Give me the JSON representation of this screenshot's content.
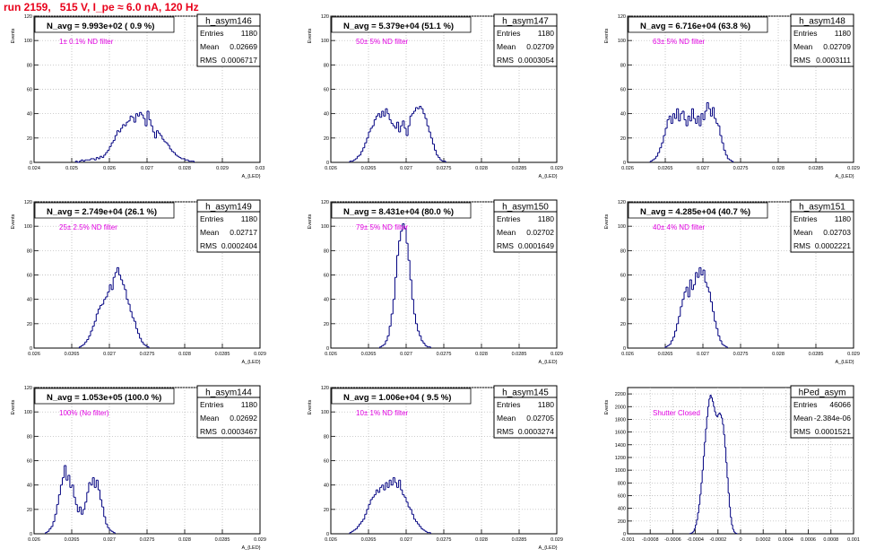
{
  "page": {
    "title": "run 2159,   515 V, I_pe ≈ 6.0 nA, 120 Hz",
    "colors": {
      "title": "#e8001a",
      "histogram": "#000080",
      "annotation": "#e000e0",
      "grid": "#b0b0b0"
    }
  },
  "chart_data": [
    {
      "type": "bar",
      "name": "h_asym146",
      "ylabel": "Events",
      "xlabel": "A_{LED}",
      "stats": {
        "entries_label": "Entries",
        "entries": "1180",
        "mean_label": "Mean",
        "mean": "0.02669",
        "rms_label": "RMS",
        "rms": "0.0006717"
      },
      "navg_text": "N_avg = 9.993e+02 ( 0.9 %)",
      "filter_text": "1± 0.1% ND filter",
      "xlim": [
        0.024,
        0.03
      ],
      "ylim": [
        0,
        120
      ],
      "grid": true,
      "xticks": [
        "0.024",
        "0.025",
        "0.026",
        "0.027",
        "0.028",
        "0.029",
        "0.03"
      ],
      "xtick_vals": [
        0.024,
        0.025,
        0.026,
        0.027,
        0.028,
        0.029,
        0.03
      ],
      "yticks": [
        "0",
        "20",
        "40",
        "60",
        "80",
        "100",
        "120"
      ],
      "ytick_vals": [
        0,
        20,
        40,
        60,
        80,
        100,
        120
      ],
      "binned": {
        "x0": 0.0251,
        "dx": 5e-05,
        "values": [
          1,
          0,
          1,
          2,
          1,
          2,
          2,
          2,
          3,
          3,
          2,
          4,
          3,
          5,
          4,
          6,
          8,
          10,
          13,
          16,
          18,
          22,
          26,
          25,
          28,
          31,
          30,
          33,
          34,
          38,
          37,
          33,
          40,
          38,
          41,
          39,
          36,
          30,
          42,
          35,
          30,
          25,
          20,
          26,
          24,
          22,
          19,
          17,
          16,
          14,
          11,
          9,
          8,
          6,
          5,
          4,
          3,
          3,
          2,
          2,
          1,
          1,
          1
        ]
      }
    },
    {
      "type": "bar",
      "name": "h_asym147",
      "ylabel": "Events",
      "xlabel": "A_{LED}",
      "stats": {
        "entries_label": "Entries",
        "entries": "1180",
        "mean_label": "Mean",
        "mean": "0.02709",
        "rms_label": "RMS",
        "rms": "0.0003054"
      },
      "navg_text": "N_avg = 5.379e+04 (51.1 %)",
      "filter_text": "50± 5% ND filter",
      "xlim": [
        0.026,
        0.029
      ],
      "ylim": [
        0,
        120
      ],
      "grid": true,
      "xticks": [
        "0.026",
        "0.0265",
        "0.027",
        "0.0275",
        "0.028",
        "0.0285",
        "0.029"
      ],
      "xtick_vals": [
        0.026,
        0.0265,
        0.027,
        0.0275,
        0.028,
        0.0285,
        0.029
      ],
      "yticks": [
        "0",
        "20",
        "40",
        "60",
        "80",
        "100",
        "120"
      ],
      "ytick_vals": [
        0,
        20,
        40,
        60,
        80,
        100,
        120
      ],
      "binned": {
        "x0": 0.02625,
        "dx": 2.5e-05,
        "values": [
          1,
          1,
          2,
          3,
          5,
          6,
          9,
          12,
          16,
          20,
          25,
          28,
          30,
          35,
          38,
          40,
          37,
          42,
          38,
          44,
          40,
          35,
          32,
          30,
          28,
          33,
          25,
          30,
          34,
          28,
          22,
          30,
          38,
          40,
          42,
          45,
          44,
          46,
          44,
          40,
          36,
          30,
          25,
          20,
          15,
          10,
          6,
          4,
          2,
          1,
          1
        ]
      }
    },
    {
      "type": "bar",
      "name": "h_asym148",
      "ylabel": "Events",
      "xlabel": "A_{LED}",
      "stats": {
        "entries_label": "Entries",
        "entries": "1180",
        "mean_label": "Mean",
        "mean": "0.02709",
        "rms_label": "RMS",
        "rms": "0.0003111"
      },
      "navg_text": "N_avg = 6.716e+04 (63.8 %)",
      "filter_text": "63± 5% ND filter",
      "xlim": [
        0.026,
        0.029
      ],
      "ylim": [
        0,
        120
      ],
      "grid": true,
      "xticks": [
        "0.026",
        "0.0265",
        "0.027",
        "0.0275",
        "0.028",
        "0.0285",
        "0.029"
      ],
      "xtick_vals": [
        0.026,
        0.0265,
        0.027,
        0.0275,
        0.028,
        0.0285,
        0.029
      ],
      "yticks": [
        "0",
        "20",
        "40",
        "60",
        "80",
        "100",
        "120"
      ],
      "ytick_vals": [
        0,
        20,
        40,
        60,
        80,
        100,
        120
      ],
      "binned": {
        "x0": 0.0263,
        "dx": 2.5e-05,
        "values": [
          1,
          2,
          3,
          5,
          8,
          12,
          16,
          22,
          28,
          35,
          38,
          32,
          40,
          36,
          44,
          34,
          40,
          42,
          35,
          30,
          38,
          34,
          44,
          36,
          32,
          38,
          30,
          40,
          35,
          42,
          49,
          44,
          38,
          45,
          36,
          32,
          30,
          22,
          16,
          10,
          6,
          3,
          2,
          1
        ]
      }
    },
    {
      "type": "bar",
      "name": "h_asym149",
      "ylabel": "Events",
      "xlabel": "A_{LED}",
      "stats": {
        "entries_label": "Entries",
        "entries": "1180",
        "mean_label": "Mean",
        "mean": "0.02717",
        "rms_label": "RMS",
        "rms": "0.0002404"
      },
      "navg_text": "N_avg = 2.749e+04 (26.1 %)",
      "filter_text": "25± 2.5% ND filter",
      "xlim": [
        0.026,
        0.029
      ],
      "ylim": [
        0,
        120
      ],
      "grid": true,
      "xticks": [
        "0.026",
        "0.0265",
        "0.027",
        "0.0275",
        "0.028",
        "0.0285",
        "0.029"
      ],
      "xtick_vals": [
        0.026,
        0.0265,
        0.027,
        0.0275,
        0.028,
        0.0285,
        0.029
      ],
      "yticks": [
        "0",
        "20",
        "40",
        "60",
        "80",
        "100",
        "120"
      ],
      "ytick_vals": [
        0,
        20,
        40,
        60,
        80,
        100,
        120
      ],
      "binned": {
        "x0": 0.0266,
        "dx": 2.5e-05,
        "values": [
          1,
          2,
          3,
          5,
          7,
          10,
          14,
          18,
          22,
          28,
          32,
          35,
          36,
          40,
          42,
          46,
          52,
          48,
          58,
          62,
          66,
          60,
          56,
          52,
          48,
          40,
          36,
          30,
          25,
          22,
          16,
          12,
          8,
          5,
          3,
          2,
          1
        ]
      }
    },
    {
      "type": "bar",
      "name": "h_asym150",
      "ylabel": "Events",
      "xlabel": "A_{LED}",
      "stats": {
        "entries_label": "Entries",
        "entries": "1180",
        "mean_label": "Mean",
        "mean": "0.02702",
        "rms_label": "RMS",
        "rms": "0.0001649"
      },
      "navg_text": "N_avg = 8.431e+04 (80.0 %)",
      "filter_text": "79± 5% ND filter",
      "xlim": [
        0.026,
        0.029
      ],
      "ylim": [
        0,
        120
      ],
      "grid": true,
      "xticks": [
        "0.026",
        "0.0265",
        "0.027",
        "0.0275",
        "0.028",
        "0.0285",
        "0.029"
      ],
      "xtick_vals": [
        0.026,
        0.0265,
        0.027,
        0.0275,
        0.028,
        0.0285,
        0.029
      ],
      "yticks": [
        "0",
        "20",
        "40",
        "60",
        "80",
        "100",
        "120"
      ],
      "ytick_vals": [
        0,
        20,
        40,
        60,
        80,
        100,
        120
      ],
      "binned": {
        "x0": 0.02665,
        "dx": 2.5e-05,
        "values": [
          1,
          2,
          3,
          6,
          10,
          18,
          28,
          40,
          58,
          76,
          88,
          96,
          102,
          98,
          86,
          72,
          56,
          40,
          28,
          20,
          14,
          10,
          6,
          4,
          2,
          1,
          1
        ]
      }
    },
    {
      "type": "bar",
      "name": "h_asym151",
      "ylabel": "Events",
      "xlabel": "A_{LED}",
      "stats": {
        "entries_label": "Entries",
        "entries": "1180",
        "mean_label": "Mean",
        "mean": "0.02703",
        "rms_label": "RMS",
        "rms": "0.0002221"
      },
      "navg_text": "N_avg = 4.285e+04 (40.7 %)",
      "filter_text": "40± 4% ND filter",
      "xlim": [
        0.026,
        0.029
      ],
      "ylim": [
        0,
        120
      ],
      "grid": true,
      "xticks": [
        "0.026",
        "0.0265",
        "0.027",
        "0.0275",
        "0.028",
        "0.0285",
        "0.029"
      ],
      "xtick_vals": [
        0.026,
        0.0265,
        0.027,
        0.0275,
        0.028,
        0.0285,
        0.029
      ],
      "yticks": [
        "0",
        "20",
        "40",
        "60",
        "80",
        "100",
        "120"
      ],
      "ytick_vals": [
        0,
        20,
        40,
        60,
        80,
        100,
        120
      ],
      "binned": {
        "x0": 0.0265,
        "dx": 2.5e-05,
        "values": [
          1,
          2,
          3,
          6,
          9,
          14,
          20,
          26,
          34,
          40,
          46,
          50,
          42,
          56,
          48,
          52,
          62,
          58,
          66,
          60,
          64,
          54,
          50,
          46,
          38,
          30,
          22,
          16,
          10,
          6,
          3,
          2,
          1
        ]
      }
    },
    {
      "type": "bar",
      "name": "h_asym144",
      "ylabel": "Events",
      "xlabel": "A_{LED}",
      "stats": {
        "entries_label": "Entries",
        "entries": "1180",
        "mean_label": "Mean",
        "mean": "0.02692",
        "rms_label": "RMS",
        "rms": "0.0003467"
      },
      "navg_text": "N_avg = 1.053e+05 (100.0 %)",
      "filter_text": "100% (No filter)",
      "xlim": [
        0.026,
        0.029
      ],
      "ylim": [
        0,
        120
      ],
      "grid": true,
      "xticks": [
        "0.026",
        "0.0265",
        "0.027",
        "0.0275",
        "0.028",
        "0.0285",
        "0.029"
      ],
      "xtick_vals": [
        0.026,
        0.0265,
        0.027,
        0.0275,
        0.028,
        0.0285,
        0.029
      ],
      "yticks": [
        "0",
        "20",
        "40",
        "60",
        "80",
        "100",
        "120"
      ],
      "ytick_vals": [
        0,
        20,
        40,
        60,
        80,
        100,
        120
      ],
      "binned": {
        "x0": 0.02615,
        "dx": 2.5e-05,
        "values": [
          1,
          2,
          4,
          6,
          10,
          16,
          24,
          32,
          40,
          46,
          56,
          44,
          48,
          38,
          40,
          30,
          24,
          18,
          22,
          16,
          20,
          26,
          34,
          42,
          40,
          46,
          38,
          44,
          36,
          28,
          22,
          14,
          8,
          5,
          3,
          2,
          1
        ]
      }
    },
    {
      "type": "bar",
      "name": "h_asym145",
      "ylabel": "Events",
      "xlabel": "A_{LED}",
      "stats": {
        "entries_label": "Entries",
        "entries": "1180",
        "mean_label": "Mean",
        "mean": "0.02705",
        "rms_label": "RMS",
        "rms": "0.0003274"
      },
      "navg_text": "N_avg = 1.006e+04 ( 9.5 %)",
      "filter_text": "10± 1% ND filter",
      "xlim": [
        0.026,
        0.029
      ],
      "ylim": [
        0,
        120
      ],
      "grid": true,
      "xticks": [
        "0.026",
        "0.0265",
        "0.027",
        "0.0275",
        "0.028",
        "0.0285",
        "0.029"
      ],
      "xtick_vals": [
        0.026,
        0.0265,
        0.027,
        0.0275,
        0.028,
        0.0285,
        0.029
      ],
      "yticks": [
        "0",
        "20",
        "40",
        "60",
        "80",
        "100",
        "120"
      ],
      "ytick_vals": [
        0,
        20,
        40,
        60,
        80,
        100,
        120
      ],
      "binned": {
        "x0": 0.02625,
        "dx": 2.5e-05,
        "values": [
          1,
          2,
          3,
          4,
          6,
          8,
          10,
          12,
          16,
          20,
          24,
          28,
          30,
          32,
          36,
          34,
          38,
          40,
          36,
          42,
          38,
          44,
          40,
          46,
          42,
          38,
          44,
          36,
          32,
          30,
          26,
          22,
          20,
          16,
          12,
          10,
          8,
          6,
          4,
          3,
          2,
          1,
          1
        ]
      }
    },
    {
      "type": "bar",
      "name": "hPed_asym",
      "ylabel": "Events",
      "xlabel": "",
      "stats": {
        "entries_label": "Entries",
        "entries": "46066",
        "mean_label": "Mean",
        "mean": "-2.384e-06",
        "rms_label": "RMS",
        "rms": "0.0001521"
      },
      "navg_text": "",
      "filter_text": "Shutter Closed",
      "xlim": [
        -0.001,
        0.001
      ],
      "ylim": [
        0,
        2300
      ],
      "grid": true,
      "xticks": [
        "-0.001",
        "-0.0008",
        "-0.0006",
        "-0.0004",
        "-0.0002",
        "0",
        "0.0002",
        "0.0004",
        "0.0006",
        "0.0008",
        "0.001"
      ],
      "xtick_vals": [
        -0.001,
        -0.0008,
        -0.0006,
        -0.0004,
        -0.0002,
        0,
        0.0002,
        0.0004,
        0.0006,
        0.0008,
        0.001
      ],
      "yticks": [
        "0",
        "200",
        "400",
        "600",
        "800",
        "1000",
        "1200",
        "1400",
        "1600",
        "1800",
        "2000",
        "2200"
      ],
      "ytick_vals": [
        0,
        200,
        400,
        600,
        800,
        1000,
        1200,
        1400,
        1600,
        1800,
        2000,
        2200
      ],
      "binned": {
        "x0": -0.00045,
        "dx": 1e-05,
        "values": [
          5,
          10,
          20,
          40,
          80,
          140,
          220,
          330,
          460,
          620,
          800,
          1000,
          1220,
          1440,
          1650,
          1840,
          2000,
          2120,
          2180,
          2140,
          2080,
          2000,
          1920,
          1860,
          1840,
          1880,
          1900,
          1870,
          1820,
          1720,
          1560,
          1360,
          1120,
          880,
          640,
          420,
          260,
          140,
          70,
          30,
          12,
          5
        ]
      }
    }
  ]
}
